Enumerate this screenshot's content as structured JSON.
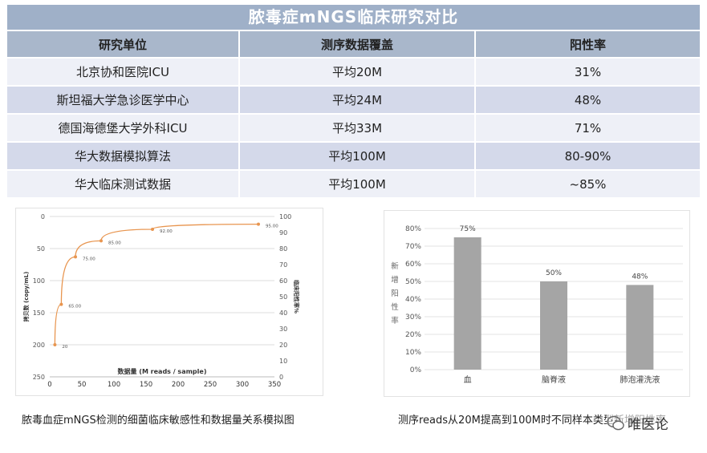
{
  "table": {
    "title": "脓毒症mNGS临床研究对比",
    "headers": [
      "研究单位",
      "测序数据覆盖",
      "阳性率"
    ],
    "rows": [
      [
        "北京协和医院ICU",
        "平均20M",
        "31%"
      ],
      [
        "斯坦福大学急诊医学中心",
        "平均24M",
        "48%"
      ],
      [
        "德国海德堡大学外科ICU",
        "平均33M",
        "71%"
      ],
      [
        "华大数据模拟算法",
        "平均100M",
        "80-90%"
      ],
      [
        "华大临床测试数据",
        "平均100M",
        "~85%"
      ]
    ]
  },
  "captions": {
    "left": "脓毒血症mNGS检测的细菌临床敏感性和数据量关系模拟图",
    "right": "测序reads从20M提高到100M时不同样本类型新增阳性率"
  },
  "watermark": "唯医论",
  "colors": {
    "title_bg": "#9fb0c8",
    "header_bg": "#a9b7cb",
    "row_light": "#eef0f7",
    "row_dark": "#d4d9ea",
    "line": "#e8954f",
    "bar": "#a5a5a5"
  },
  "chart_data": [
    {
      "type": "line",
      "xlabel": "数据量 (M reads / sample)",
      "ylabel": "拷贝数 (copy/mL)",
      "y2label": "临床阳性率%",
      "xlim": [
        0,
        350
      ],
      "xticks": [
        0,
        50,
        100,
        150,
        200,
        250,
        300,
        350
      ],
      "ylim": [
        250,
        0
      ],
      "yticks": [
        0,
        50,
        100,
        150,
        200,
        250
      ],
      "y2lim": [
        0,
        100
      ],
      "y2ticks": [
        0,
        10,
        20,
        30,
        40,
        50,
        60,
        70,
        80,
        90,
        100
      ],
      "grid": "horizontal",
      "series": [
        {
          "x": [
            8,
            18,
            40,
            80,
            160,
            325
          ],
          "y": [
            200,
            137,
            63,
            38,
            20,
            12
          ],
          "labels": [
            "20",
            "65.00",
            "75.00",
            "85.00",
            "92.00",
            "95.00"
          ]
        }
      ]
    },
    {
      "type": "bar",
      "ylabel": "新增阳性率",
      "categories": [
        "血",
        "脑脊液",
        "肺泡灌洗液"
      ],
      "values": [
        75,
        50,
        48
      ],
      "value_labels": [
        "75%",
        "50%",
        "48%"
      ],
      "ylim": [
        0,
        80
      ],
      "yticks": [
        "0%",
        "10%",
        "20%",
        "30%",
        "40%",
        "50%",
        "60%",
        "70%",
        "80%"
      ],
      "grid": "horizontal"
    }
  ]
}
